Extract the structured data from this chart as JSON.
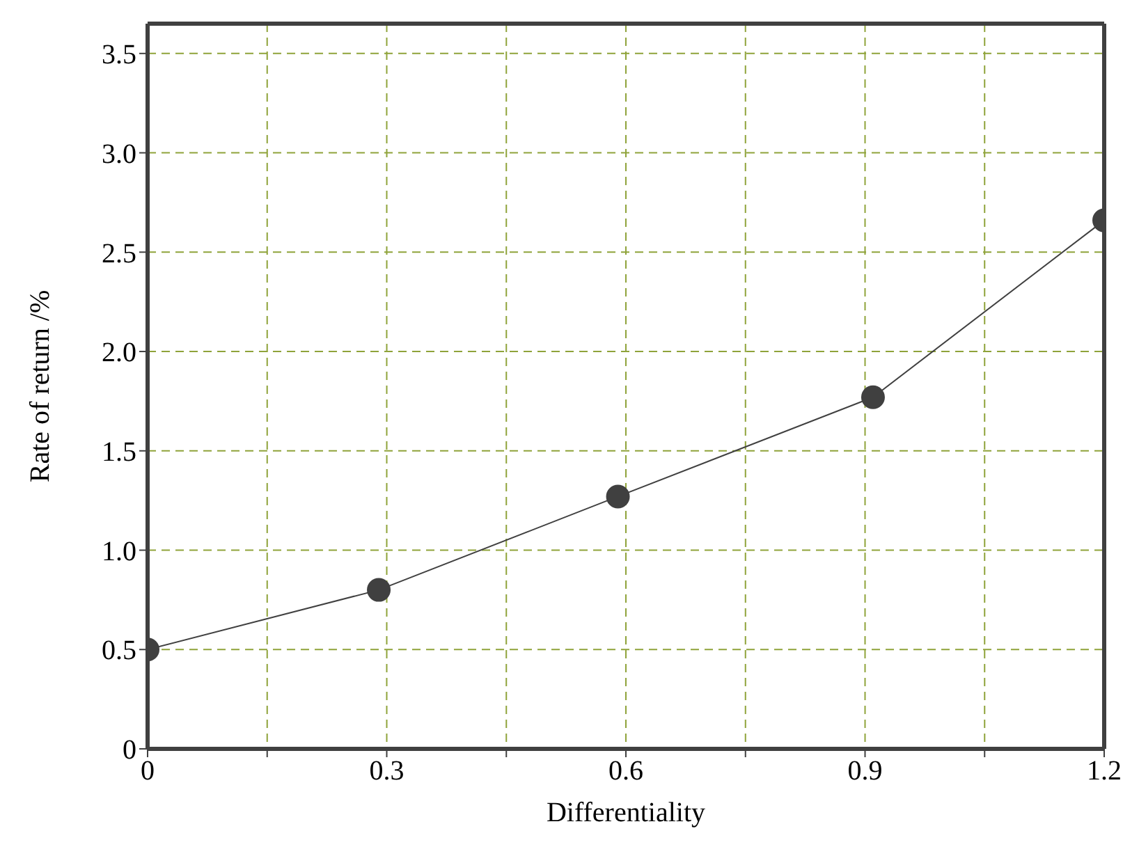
{
  "chart_data": {
    "type": "line",
    "xlabel": "Differentiality",
    "ylabel": "Rate of return /%",
    "x": [
      0,
      0.29,
      0.59,
      0.91,
      1.2
    ],
    "series": [
      {
        "color": "#404040",
        "values": [
          0.5,
          0.8,
          1.27,
          1.77,
          2.66
        ]
      }
    ],
    "xlim": [
      0,
      1.2
    ],
    "xticks": [
      0,
      {
        "value": 0.15,
        "label": null
      },
      0.3,
      {
        "value": 0.45,
        "label": null
      },
      0.6,
      {
        "value": 0.75,
        "label": null
      },
      0.9,
      {
        "value": 1.05,
        "label": null
      },
      1.2
    ],
    "ylim": [
      0,
      3.65
    ],
    "yticks": [
      0,
      0.5,
      {
        "value": 1,
        "label": "1.0"
      },
      1.5,
      {
        "value": 2,
        "label": "2.0"
      },
      2.5,
      {
        "value": 3,
        "label": "3.0"
      },
      3.5
    ],
    "grid": true,
    "marker": "circle",
    "line_style": "solid"
  }
}
